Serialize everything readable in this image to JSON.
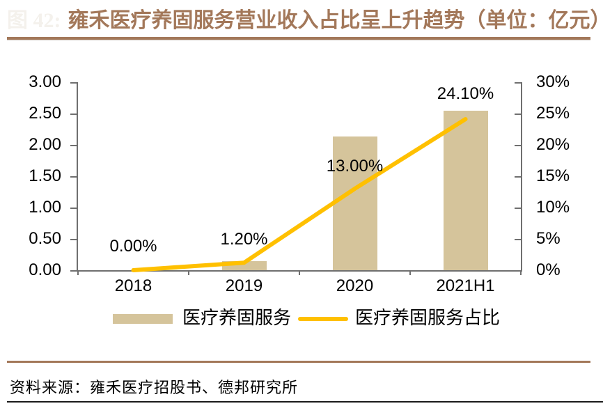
{
  "header": {
    "prefix": "图 42:",
    "title": "雍禾医疗养固服务营业收入占比呈上升趋势（单位：亿元）"
  },
  "chart_data": {
    "type": "bar",
    "subtype": "bar+line combo, dual axis",
    "categories": [
      "2018",
      "2019",
      "2020",
      "2021H1"
    ],
    "series": [
      {
        "name": "医疗养固服务",
        "type": "bar",
        "axis": "left",
        "unit": "亿元",
        "values": [
          0.0,
          0.15,
          2.13,
          2.54
        ],
        "color": "#d5c49b"
      },
      {
        "name": "医疗养固服务占比",
        "type": "line",
        "axis": "right",
        "unit": "%",
        "values": [
          0.0,
          1.2,
          13.0,
          24.1
        ],
        "point_labels": [
          "0.00%",
          "1.20%",
          "13.00%",
          "24.10%"
        ],
        "color": "#ffc000"
      }
    ],
    "left_axis": {
      "range": [
        0,
        3
      ],
      "tick_labels": [
        "3.00",
        "2.50",
        "2.00",
        "1.50",
        "1.00",
        "0.50",
        "0.00"
      ]
    },
    "right_axis": {
      "range": [
        0,
        30
      ],
      "tick_labels": [
        "30%",
        "25%",
        "20%",
        "15%",
        "10%",
        "5%",
        "0%"
      ]
    },
    "grid": false,
    "legend_position": "bottom",
    "layout": {
      "label_offsets": [
        22,
        21,
        20,
        24
      ]
    }
  },
  "footer": {
    "source": "资料来源：雍禾医疗招股书、德邦研究所"
  },
  "colors": {
    "title": "#a3785a",
    "rule": "#a3785a",
    "bar": "#d5c49b",
    "line": "#ffc000",
    "axis": "#6f6f6f",
    "text": "#000000"
  }
}
